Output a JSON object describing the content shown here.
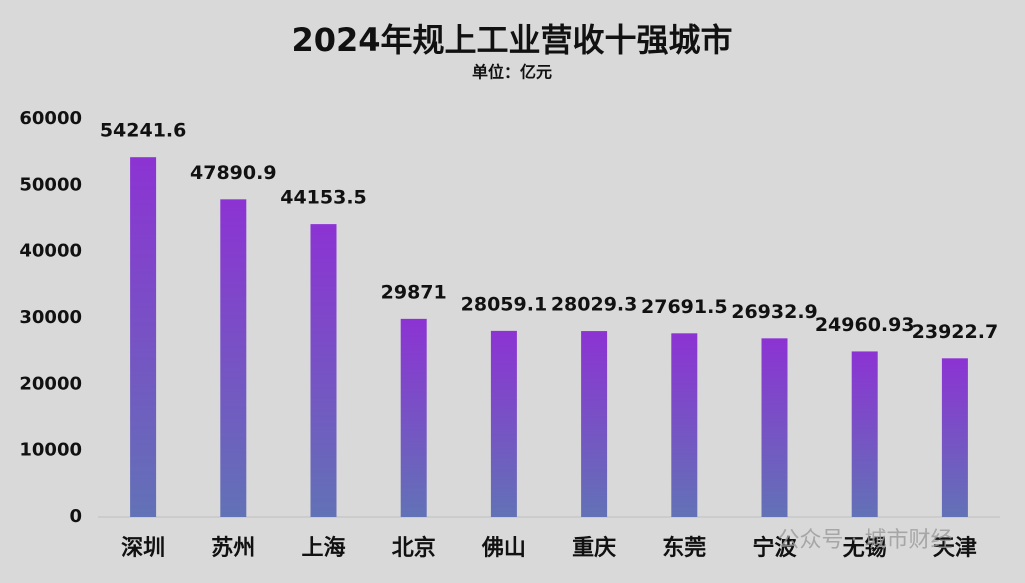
{
  "chart_data": {
    "type": "bar",
    "title": "2024年规上工业营收十强城市",
    "subtitle": "单位：亿元",
    "categories": [
      "深圳",
      "苏州",
      "上海",
      "北京",
      "佛山",
      "重庆",
      "东莞",
      "宁波",
      "无锡",
      "天津"
    ],
    "values": [
      54241.6,
      47890.9,
      44153.5,
      29871,
      28059.1,
      28029.3,
      27691.5,
      26932.9,
      24960.93,
      23922.7
    ],
    "color": [
      "#8c33d3",
      "#6272b6"
    ],
    "ylim": [
      0,
      60000
    ],
    "yticks": [
      0,
      10000,
      20000,
      30000,
      40000,
      50000,
      60000
    ],
    "grid": false,
    "watermark": "公众号 · 城市财经"
  }
}
